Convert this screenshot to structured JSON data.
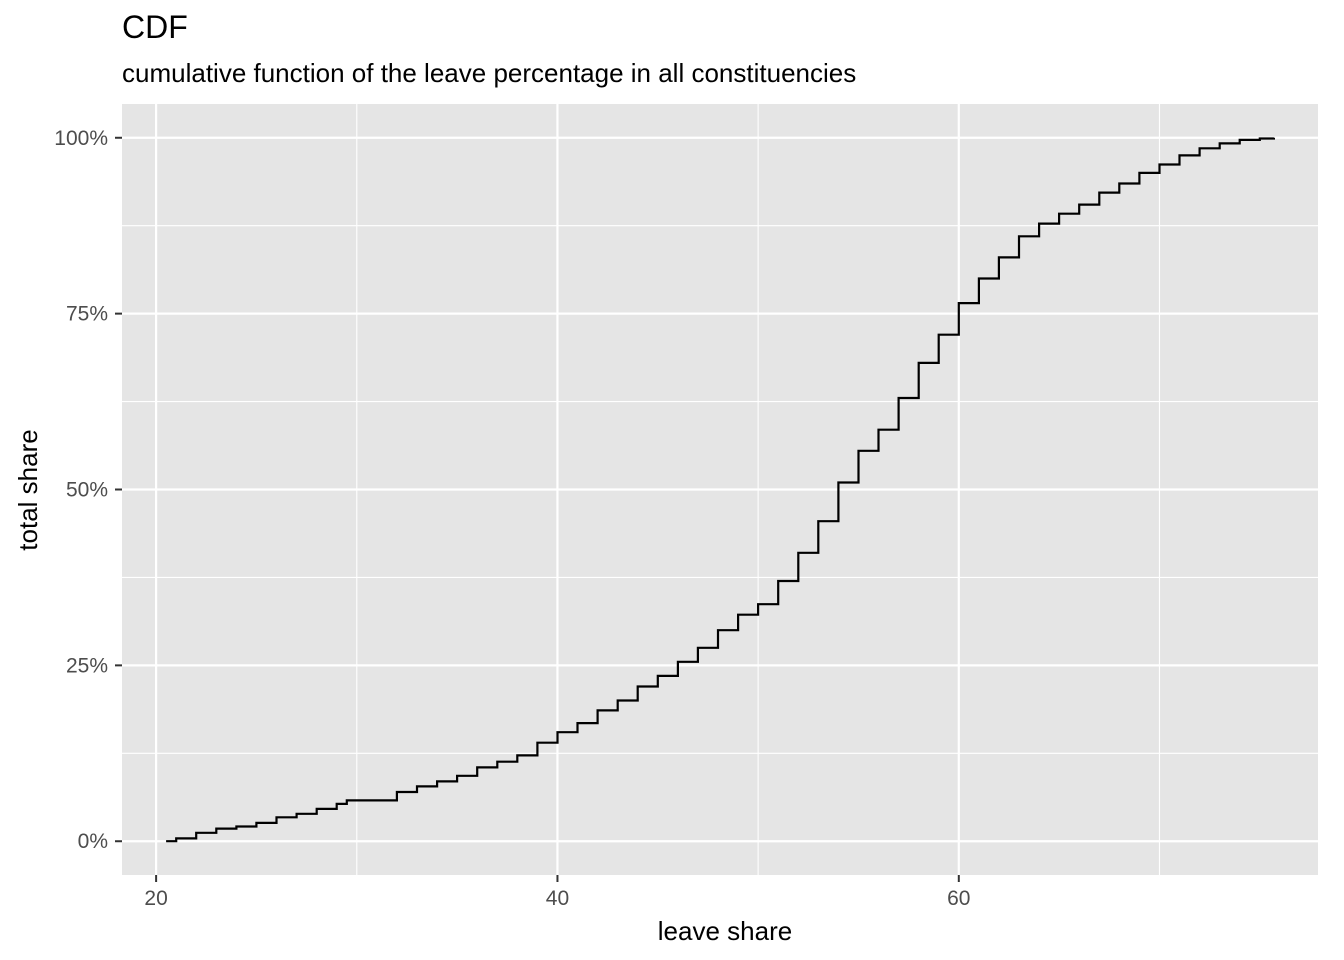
{
  "chart_data": {
    "type": "line",
    "title": "CDF",
    "subtitle": "cumulative function of the leave percentage in all constituencies",
    "xlabel": "leave share",
    "ylabel": "total share",
    "xlim": [
      18.3,
      77.9
    ],
    "ylim": [
      -0.048,
      1.048
    ],
    "x_ticks": [
      20,
      40,
      60
    ],
    "x_tick_labels": [
      "20",
      "40",
      "60"
    ],
    "x_minor_ticks": [
      30,
      50,
      70
    ],
    "y_ticks": [
      0,
      0.25,
      0.5,
      0.75,
      1.0
    ],
    "y_tick_labels": [
      "0%",
      "25%",
      "50%",
      "75%",
      "100%"
    ],
    "y_minor_ticks": [
      0.125,
      0.375,
      0.625,
      0.875
    ],
    "grid": true,
    "legend": "none",
    "colors": {
      "panel": "#e5e5e5",
      "grid": "#ffffff",
      "line": "#000000",
      "tick_text": "#4d4d4d"
    },
    "series": [
      {
        "x": [
          20.5,
          21.0,
          22.0,
          23.0,
          24.0,
          25.0,
          26.0,
          27.0,
          28.0,
          29.0,
          29.5,
          30.0,
          31.0,
          32.0,
          33.0,
          34.0,
          35.0,
          36.0,
          37.0,
          38.0,
          39.0,
          40.0,
          41.0,
          42.0,
          43.0,
          44.0,
          45.0,
          46.0,
          47.0,
          48.0,
          49.0,
          50.0,
          51.0,
          52.0,
          53.0,
          54.0,
          55.0,
          56.0,
          57.0,
          58.0,
          59.0,
          60.0,
          61.0,
          62.0,
          63.0,
          64.0,
          65.0,
          66.0,
          67.0,
          68.0,
          69.0,
          70.0,
          71.0,
          72.0,
          73.0,
          74.0,
          75.0,
          75.7
        ],
        "y": [
          0.0,
          0.004,
          0.012,
          0.018,
          0.021,
          0.026,
          0.034,
          0.039,
          0.046,
          0.053,
          0.058,
          0.058,
          0.058,
          0.07,
          0.078,
          0.085,
          0.093,
          0.105,
          0.113,
          0.122,
          0.14,
          0.155,
          0.168,
          0.186,
          0.2,
          0.22,
          0.235,
          0.255,
          0.275,
          0.3,
          0.322,
          0.337,
          0.37,
          0.41,
          0.455,
          0.51,
          0.555,
          0.585,
          0.63,
          0.68,
          0.72,
          0.765,
          0.8,
          0.83,
          0.86,
          0.878,
          0.892,
          0.905,
          0.922,
          0.935,
          0.95,
          0.962,
          0.975,
          0.985,
          0.992,
          0.997,
          0.999,
          1.0
        ]
      }
    ]
  }
}
